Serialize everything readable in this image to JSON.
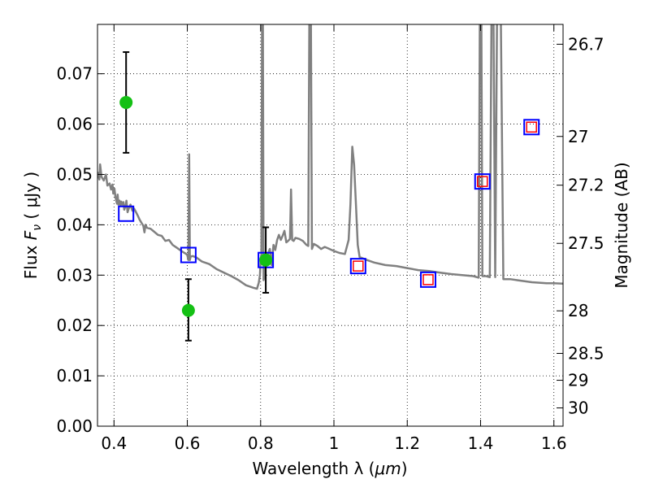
{
  "chart_data": {
    "type": "scatter",
    "xlabel_prefix": "Wavelength  λ (",
    "xlabel_unit": "μm",
    "xlabel_suffix": ")",
    "ylabel_prefix": "Flux  ",
    "ylabel_symbol": "F",
    "ylabel_sub": "ν",
    "ylabel_unit": " (  μJy )",
    "y2label": "Magnitude (AB)",
    "xlim": [
      0.355,
      1.625
    ],
    "ylim": [
      0.0,
      0.0798
    ],
    "grid": true,
    "x_ticks": [
      {
        "value": 0.4,
        "label": "0.4"
      },
      {
        "value": 0.6,
        "label": "0.6"
      },
      {
        "value": 0.8,
        "label": "0.8"
      },
      {
        "value": 1.0,
        "label": "1"
      },
      {
        "value": 1.2,
        "label": "1.2"
      },
      {
        "value": 1.4,
        "label": "1.4"
      },
      {
        "value": 1.6,
        "label": "1.6"
      }
    ],
    "y_ticks": [
      {
        "value": 0.0,
        "label": "0.00"
      },
      {
        "value": 0.01,
        "label": "0.01"
      },
      {
        "value": 0.02,
        "label": "0.02"
      },
      {
        "value": 0.03,
        "label": "0.03"
      },
      {
        "value": 0.04,
        "label": "0.04"
      },
      {
        "value": 0.05,
        "label": "0.05"
      },
      {
        "value": 0.06,
        "label": "0.06"
      },
      {
        "value": 0.07,
        "label": "0.07"
      }
    ],
    "y2_ticks": [
      {
        "value": 26.7,
        "label": "26.7"
      },
      {
        "value": 27.0,
        "label": "27"
      },
      {
        "value": 27.2,
        "label": "27.2"
      },
      {
        "value": 27.5,
        "label": "27.5"
      },
      {
        "value": 28.0,
        "label": "28"
      },
      {
        "value": 28.5,
        "label": "28.5"
      },
      {
        "value": 29.0,
        "label": "29"
      },
      {
        "value": 30.0,
        "label": "30"
      }
    ],
    "model_spectrum": {
      "color": "#808080",
      "points": [
        [
          0.355,
          0.0505
        ],
        [
          0.36,
          0.049
        ],
        [
          0.362,
          0.052
        ],
        [
          0.366,
          0.0495
        ],
        [
          0.372,
          0.0488
        ],
        [
          0.378,
          0.05
        ],
        [
          0.382,
          0.0478
        ],
        [
          0.388,
          0.0482
        ],
        [
          0.392,
          0.047
        ],
        [
          0.396,
          0.048
        ],
        [
          0.398,
          0.0462
        ],
        [
          0.401,
          0.0472
        ],
        [
          0.404,
          0.0455
        ],
        [
          0.408,
          0.0442
        ],
        [
          0.41,
          0.046
        ],
        [
          0.412,
          0.044
        ],
        [
          0.415,
          0.0448
        ],
        [
          0.418,
          0.0438
        ],
        [
          0.42,
          0.0446
        ],
        [
          0.423,
          0.044
        ],
        [
          0.426,
          0.0445
        ],
        [
          0.428,
          0.043
        ],
        [
          0.432,
          0.0438
        ],
        [
          0.434,
          0.0448
        ],
        [
          0.437,
          0.0425
        ],
        [
          0.44,
          0.0432
        ],
        [
          0.445,
          0.044
        ],
        [
          0.45,
          0.0428
        ],
        [
          0.455,
          0.0432
        ],
        [
          0.46,
          0.0425
        ],
        [
          0.465,
          0.0418
        ],
        [
          0.47,
          0.041
        ],
        [
          0.475,
          0.0404
        ],
        [
          0.48,
          0.0398
        ],
        [
          0.483,
          0.0385
        ],
        [
          0.486,
          0.04
        ],
        [
          0.49,
          0.0394
        ],
        [
          0.5,
          0.0392
        ],
        [
          0.51,
          0.0386
        ],
        [
          0.52,
          0.038
        ],
        [
          0.53,
          0.0378
        ],
        [
          0.54,
          0.0368
        ],
        [
          0.55,
          0.037
        ],
        [
          0.56,
          0.036
        ],
        [
          0.57,
          0.0355
        ],
        [
          0.58,
          0.035
        ],
        [
          0.59,
          0.0345
        ],
        [
          0.595,
          0.0343
        ],
        [
          0.6,
          0.034
        ],
        [
          0.603,
          0.033
        ],
        [
          0.605,
          0.054
        ],
        [
          0.607,
          0.033
        ],
        [
          0.609,
          0.0337
        ],
        [
          0.615,
          0.0338
        ],
        [
          0.625,
          0.0335
        ],
        [
          0.64,
          0.0327
        ],
        [
          0.66,
          0.0322
        ],
        [
          0.68,
          0.0312
        ],
        [
          0.7,
          0.0305
        ],
        [
          0.72,
          0.0298
        ],
        [
          0.74,
          0.029
        ],
        [
          0.76,
          0.028
        ],
        [
          0.78,
          0.0275
        ],
        [
          0.79,
          0.0273
        ],
        [
          0.795,
          0.0285
        ],
        [
          0.798,
          0.03
        ],
        [
          0.8,
          0.033
        ],
        [
          0.802,
          0.034
        ],
        [
          0.804,
          0.083
        ],
        [
          0.806,
          0.083
        ],
        [
          0.808,
          0.029
        ],
        [
          0.812,
          0.03
        ],
        [
          0.815,
          0.033
        ],
        [
          0.82,
          0.0342
        ],
        [
          0.825,
          0.0352
        ],
        [
          0.83,
          0.032
        ],
        [
          0.835,
          0.036
        ],
        [
          0.84,
          0.035
        ],
        [
          0.845,
          0.037
        ],
        [
          0.85,
          0.038
        ],
        [
          0.855,
          0.037
        ],
        [
          0.86,
          0.0378
        ],
        [
          0.865,
          0.0388
        ],
        [
          0.87,
          0.0365
        ],
        [
          0.875,
          0.0368
        ],
        [
          0.88,
          0.0372
        ],
        [
          0.883,
          0.047
        ],
        [
          0.886,
          0.037
        ],
        [
          0.89,
          0.0368
        ],
        [
          0.895,
          0.0374
        ],
        [
          0.905,
          0.0372
        ],
        [
          0.915,
          0.0368
        ],
        [
          0.925,
          0.036
        ],
        [
          0.93,
          0.0358
        ],
        [
          0.933,
          0.083
        ],
        [
          0.937,
          0.083
        ],
        [
          0.94,
          0.0352
        ],
        [
          0.945,
          0.0362
        ],
        [
          0.955,
          0.0358
        ],
        [
          0.965,
          0.0352
        ],
        [
          0.975,
          0.0356
        ],
        [
          0.985,
          0.0353
        ],
        [
          1.0,
          0.0348
        ],
        [
          1.015,
          0.0344
        ],
        [
          1.03,
          0.0342
        ],
        [
          1.04,
          0.037
        ],
        [
          1.045,
          0.044
        ],
        [
          1.05,
          0.0555
        ],
        [
          1.055,
          0.052
        ],
        [
          1.06,
          0.044
        ],
        [
          1.065,
          0.036
        ],
        [
          1.07,
          0.0336
        ],
        [
          1.09,
          0.033
        ],
        [
          1.11,
          0.0325
        ],
        [
          1.14,
          0.032
        ],
        [
          1.17,
          0.0318
        ],
        [
          1.2,
          0.0314
        ],
        [
          1.23,
          0.031
        ],
        [
          1.26,
          0.0308
        ],
        [
          1.29,
          0.0305
        ],
        [
          1.32,
          0.0302
        ],
        [
          1.35,
          0.03
        ],
        [
          1.38,
          0.0298
        ],
        [
          1.395,
          0.0295
        ],
        [
          1.398,
          0.083
        ],
        [
          1.402,
          0.083
        ],
        [
          1.405,
          0.0298
        ],
        [
          1.415,
          0.0298
        ],
        [
          1.425,
          0.0296
        ],
        [
          1.43,
          0.083
        ],
        [
          1.435,
          0.083
        ],
        [
          1.44,
          0.0296
        ],
        [
          1.445,
          0.083
        ],
        [
          1.455,
          0.083
        ],
        [
          1.462,
          0.0292
        ],
        [
          1.48,
          0.0292
        ],
        [
          1.5,
          0.029
        ],
        [
          1.52,
          0.0288
        ],
        [
          1.54,
          0.0286
        ],
        [
          1.56,
          0.0285
        ],
        [
          1.58,
          0.0284
        ],
        [
          1.6,
          0.0284
        ],
        [
          1.625,
          0.0283
        ]
      ]
    },
    "observed_points": {
      "color": "#14c014",
      "errorbar_color": "#000000",
      "points": [
        {
          "x": 0.433,
          "y": 0.0643,
          "yerr_low": 0.0543,
          "yerr_high": 0.0743
        },
        {
          "x": 0.603,
          "y": 0.023,
          "yerr_low": 0.017,
          "yerr_high": 0.0292
        },
        {
          "x": 0.814,
          "y": 0.033,
          "yerr_low": 0.0265,
          "yerr_high": 0.0395
        }
      ]
    },
    "model_photometry": {
      "color": "#0000ff",
      "points": [
        {
          "x": 0.433,
          "y": 0.0422
        },
        {
          "x": 0.603,
          "y": 0.034
        },
        {
          "x": 0.814,
          "y": 0.033
        },
        {
          "x": 1.066,
          "y": 0.0318
        },
        {
          "x": 1.257,
          "y": 0.0291
        },
        {
          "x": 1.405,
          "y": 0.0486
        },
        {
          "x": 1.539,
          "y": 0.0594
        }
      ]
    },
    "model_photometry_alt": {
      "color": "#ff0000",
      "points": [
        {
          "x": 1.066,
          "y": 0.0318
        },
        {
          "x": 1.257,
          "y": 0.0291
        },
        {
          "x": 1.405,
          "y": 0.0486
        },
        {
          "x": 1.539,
          "y": 0.0594
        }
      ]
    }
  }
}
